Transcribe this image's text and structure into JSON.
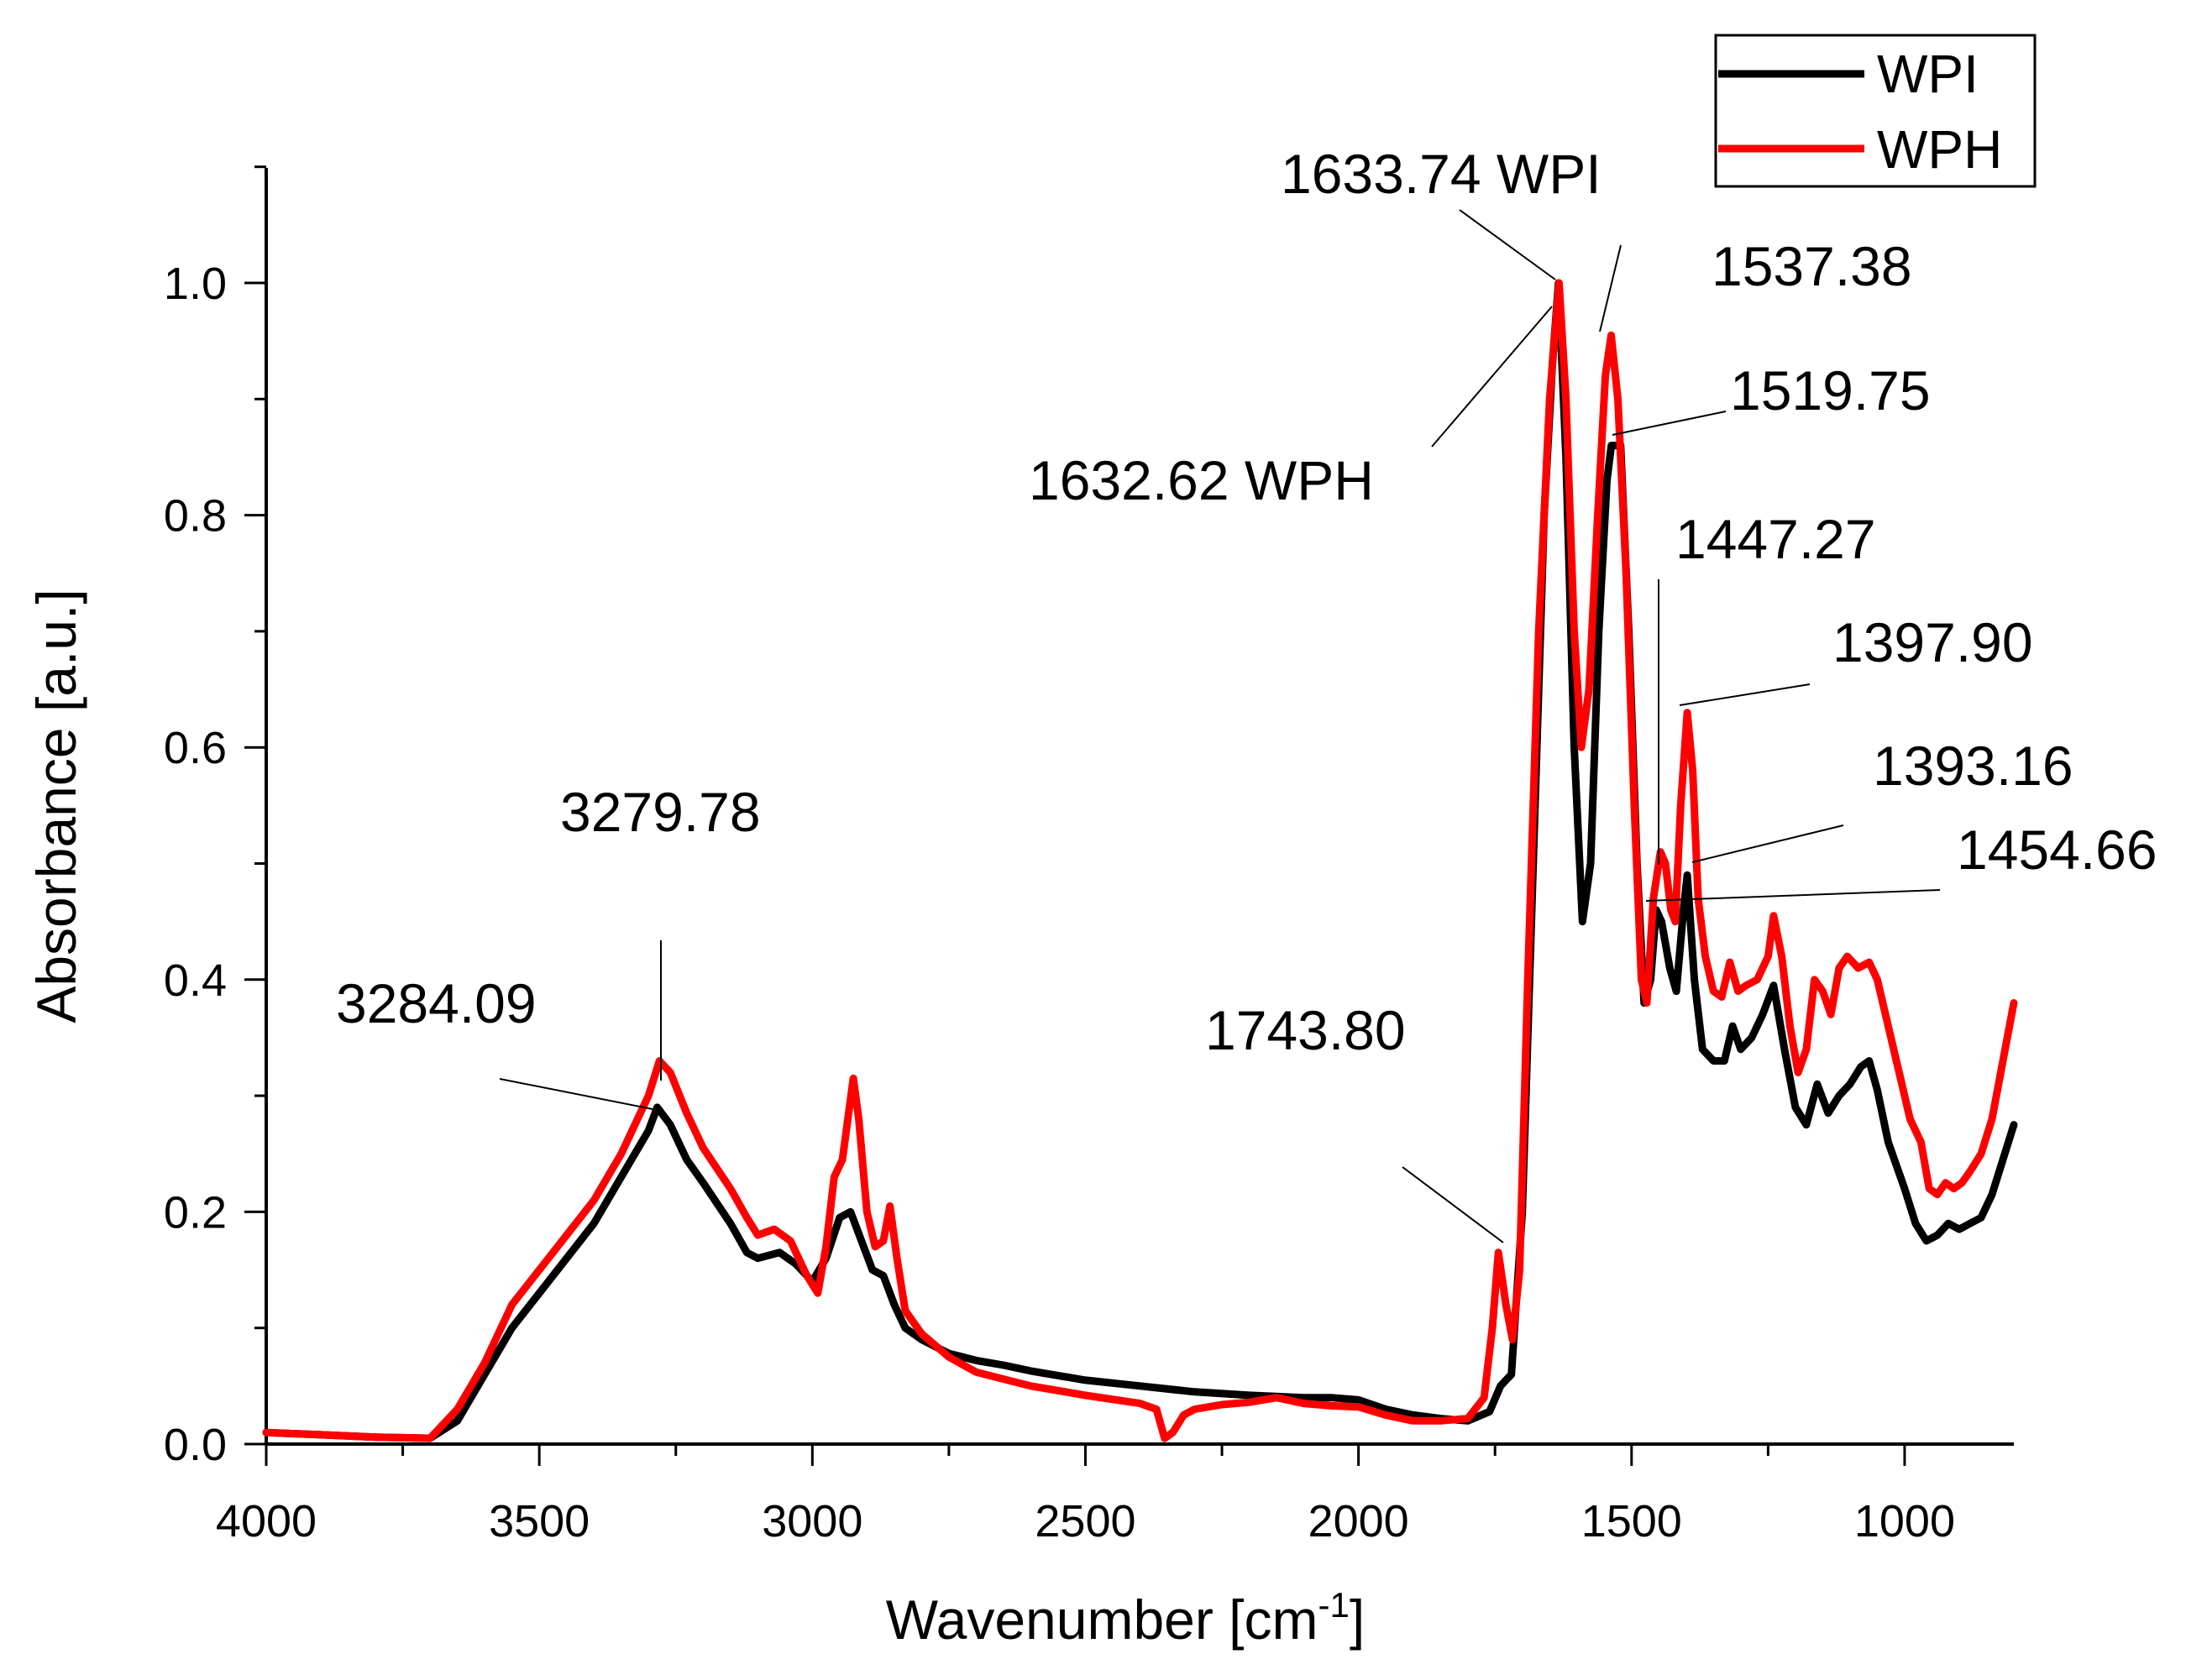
{
  "chart_data": {
    "type": "line",
    "title": "",
    "xlabel": "Wavenumber [cm",
    "xlabel_sup": "-1",
    "xlabel_end": "]",
    "ylabel": "Absorbance [a.u.]",
    "xlim": [
      4000,
      800
    ],
    "ylim": [
      0,
      1.1
    ],
    "x_ticks": [
      4000,
      3500,
      3000,
      2500,
      2000,
      1500,
      1000
    ],
    "x_tick_labels": [
      "4000",
      "3500",
      "3000",
      "2500",
      "2000",
      "1500",
      "1000"
    ],
    "y_ticks": [
      0,
      0.2,
      0.4,
      0.6,
      0.8,
      1.0
    ],
    "y_tick_labels": [
      "0.0",
      "0.2",
      "0.4",
      "0.6",
      "0.8",
      "1.0"
    ],
    "legend_position": "top-right",
    "series": [
      {
        "name": "WPI",
        "color": "#000000",
        "points": [
          [
            4000,
            0.01
          ],
          [
            3900,
            0.008
          ],
          [
            3800,
            0.006
          ],
          [
            3700,
            0.005
          ],
          [
            3650,
            0.02
          ],
          [
            3600,
            0.06
          ],
          [
            3550,
            0.1
          ],
          [
            3500,
            0.13
          ],
          [
            3450,
            0.16
          ],
          [
            3400,
            0.19
          ],
          [
            3350,
            0.23
          ],
          [
            3300,
            0.27
          ],
          [
            3284,
            0.29
          ],
          [
            3260,
            0.275
          ],
          [
            3230,
            0.245
          ],
          [
            3200,
            0.225
          ],
          [
            3150,
            0.19
          ],
          [
            3120,
            0.165
          ],
          [
            3100,
            0.16
          ],
          [
            3060,
            0.165
          ],
          [
            3030,
            0.155
          ],
          [
            3000,
            0.14
          ],
          [
            2975,
            0.16
          ],
          [
            2950,
            0.195
          ],
          [
            2930,
            0.2
          ],
          [
            2910,
            0.175
          ],
          [
            2890,
            0.15
          ],
          [
            2870,
            0.145
          ],
          [
            2850,
            0.12
          ],
          [
            2830,
            0.1
          ],
          [
            2800,
            0.09
          ],
          [
            2750,
            0.078
          ],
          [
            2700,
            0.072
          ],
          [
            2650,
            0.068
          ],
          [
            2600,
            0.063
          ],
          [
            2500,
            0.055
          ],
          [
            2400,
            0.05
          ],
          [
            2300,
            0.045
          ],
          [
            2200,
            0.042
          ],
          [
            2100,
            0.04
          ],
          [
            2050,
            0.04
          ],
          [
            2000,
            0.038
          ],
          [
            1950,
            0.03
          ],
          [
            1900,
            0.025
          ],
          [
            1850,
            0.022
          ],
          [
            1800,
            0.02
          ],
          [
            1760,
            0.028
          ],
          [
            1740,
            0.05
          ],
          [
            1720,
            0.06
          ],
          [
            1700,
            0.2
          ],
          [
            1680,
            0.5
          ],
          [
            1660,
            0.8
          ],
          [
            1645,
            0.93
          ],
          [
            1633.74,
            1.0
          ],
          [
            1620,
            0.85
          ],
          [
            1605,
            0.6
          ],
          [
            1590,
            0.45
          ],
          [
            1575,
            0.5
          ],
          [
            1560,
            0.7
          ],
          [
            1545,
            0.83
          ],
          [
            1537,
            0.86
          ],
          [
            1520,
            0.86
          ],
          [
            1505,
            0.7
          ],
          [
            1490,
            0.5
          ],
          [
            1477,
            0.38
          ],
          [
            1465,
            0.4
          ],
          [
            1455,
            0.46
          ],
          [
            1445,
            0.45
          ],
          [
            1430,
            0.41
          ],
          [
            1418,
            0.39
          ],
          [
            1405,
            0.46
          ],
          [
            1398,
            0.49
          ],
          [
            1385,
            0.4
          ],
          [
            1370,
            0.34
          ],
          [
            1350,
            0.33
          ],
          [
            1330,
            0.33
          ],
          [
            1315,
            0.36
          ],
          [
            1300,
            0.34
          ],
          [
            1280,
            0.35
          ],
          [
            1260,
            0.37
          ],
          [
            1240,
            0.395
          ],
          [
            1220,
            0.34
          ],
          [
            1200,
            0.29
          ],
          [
            1180,
            0.275
          ],
          [
            1160,
            0.31
          ],
          [
            1140,
            0.285
          ],
          [
            1120,
            0.3
          ],
          [
            1100,
            0.31
          ],
          [
            1080,
            0.325
          ],
          [
            1065,
            0.33
          ],
          [
            1050,
            0.305
          ],
          [
            1030,
            0.26
          ],
          [
            1000,
            0.22
          ],
          [
            980,
            0.19
          ],
          [
            960,
            0.175
          ],
          [
            940,
            0.18
          ],
          [
            920,
            0.19
          ],
          [
            900,
            0.185
          ],
          [
            880,
            0.19
          ],
          [
            860,
            0.195
          ],
          [
            840,
            0.215
          ],
          [
            820,
            0.245
          ],
          [
            800,
            0.275
          ]
        ]
      },
      {
        "name": "WPH",
        "color": "#ff0000",
        "points": [
          [
            4000,
            0.01
          ],
          [
            3900,
            0.008
          ],
          [
            3800,
            0.006
          ],
          [
            3700,
            0.005
          ],
          [
            3650,
            0.03
          ],
          [
            3600,
            0.07
          ],
          [
            3550,
            0.12
          ],
          [
            3500,
            0.15
          ],
          [
            3450,
            0.18
          ],
          [
            3400,
            0.21
          ],
          [
            3350,
            0.25
          ],
          [
            3300,
            0.3
          ],
          [
            3280,
            0.33
          ],
          [
            3260,
            0.32
          ],
          [
            3230,
            0.285
          ],
          [
            3200,
            0.255
          ],
          [
            3150,
            0.22
          ],
          [
            3120,
            0.195
          ],
          [
            3100,
            0.18
          ],
          [
            3070,
            0.185
          ],
          [
            3040,
            0.175
          ],
          [
            3010,
            0.145
          ],
          [
            2990,
            0.13
          ],
          [
            2975,
            0.17
          ],
          [
            2960,
            0.23
          ],
          [
            2945,
            0.245
          ],
          [
            2935,
            0.28
          ],
          [
            2925,
            0.315
          ],
          [
            2915,
            0.28
          ],
          [
            2900,
            0.2
          ],
          [
            2885,
            0.17
          ],
          [
            2870,
            0.175
          ],
          [
            2858,
            0.205
          ],
          [
            2845,
            0.16
          ],
          [
            2830,
            0.115
          ],
          [
            2800,
            0.095
          ],
          [
            2750,
            0.075
          ],
          [
            2700,
            0.062
          ],
          [
            2600,
            0.05
          ],
          [
            2500,
            0.042
          ],
          [
            2400,
            0.035
          ],
          [
            2370,
            0.03
          ],
          [
            2355,
            0.005
          ],
          [
            2340,
            0.01
          ],
          [
            2320,
            0.025
          ],
          [
            2300,
            0.03
          ],
          [
            2250,
            0.034
          ],
          [
            2200,
            0.036
          ],
          [
            2150,
            0.04
          ],
          [
            2100,
            0.035
          ],
          [
            2050,
            0.033
          ],
          [
            2000,
            0.032
          ],
          [
            1950,
            0.025
          ],
          [
            1900,
            0.02
          ],
          [
            1850,
            0.02
          ],
          [
            1800,
            0.022
          ],
          [
            1770,
            0.04
          ],
          [
            1755,
            0.1
          ],
          [
            1743.8,
            0.165
          ],
          [
            1730,
            0.12
          ],
          [
            1718,
            0.09
          ],
          [
            1705,
            0.15
          ],
          [
            1690,
            0.4
          ],
          [
            1670,
            0.7
          ],
          [
            1650,
            0.9
          ],
          [
            1632.62,
            1.0
          ],
          [
            1620,
            0.9
          ],
          [
            1605,
            0.7
          ],
          [
            1592,
            0.6
          ],
          [
            1578,
            0.65
          ],
          [
            1562,
            0.8
          ],
          [
            1548,
            0.92
          ],
          [
            1537.38,
            0.955
          ],
          [
            1525,
            0.9
          ],
          [
            1510,
            0.75
          ],
          [
            1495,
            0.55
          ],
          [
            1482,
            0.4
          ],
          [
            1472,
            0.38
          ],
          [
            1460,
            0.47
          ],
          [
            1447,
            0.51
          ],
          [
            1438,
            0.5
          ],
          [
            1428,
            0.46
          ],
          [
            1420,
            0.45
          ],
          [
            1410,
            0.55
          ],
          [
            1398,
            0.63
          ],
          [
            1388,
            0.58
          ],
          [
            1378,
            0.47
          ],
          [
            1365,
            0.42
          ],
          [
            1350,
            0.39
          ],
          [
            1335,
            0.385
          ],
          [
            1320,
            0.415
          ],
          [
            1305,
            0.39
          ],
          [
            1290,
            0.395
          ],
          [
            1270,
            0.4
          ],
          [
            1250,
            0.42
          ],
          [
            1240,
            0.455
          ],
          [
            1225,
            0.42
          ],
          [
            1210,
            0.36
          ],
          [
            1195,
            0.32
          ],
          [
            1180,
            0.34
          ],
          [
            1165,
            0.4
          ],
          [
            1150,
            0.39
          ],
          [
            1135,
            0.37
          ],
          [
            1120,
            0.41
          ],
          [
            1105,
            0.42
          ],
          [
            1085,
            0.41
          ],
          [
            1065,
            0.415
          ],
          [
            1050,
            0.4
          ],
          [
            1030,
            0.36
          ],
          [
            1010,
            0.32
          ],
          [
            990,
            0.28
          ],
          [
            970,
            0.26
          ],
          [
            955,
            0.22
          ],
          [
            940,
            0.215
          ],
          [
            925,
            0.225
          ],
          [
            910,
            0.22
          ],
          [
            895,
            0.225
          ],
          [
            880,
            0.235
          ],
          [
            860,
            0.25
          ],
          [
            840,
            0.28
          ],
          [
            820,
            0.33
          ],
          [
            800,
            0.38
          ]
        ]
      }
    ],
    "annotations": [
      {
        "text": "1633.74 WPI"
      },
      {
        "text": "1537.38"
      },
      {
        "text": "1632.62 WPH"
      },
      {
        "text": "1519.75"
      },
      {
        "text": "1447.27"
      },
      {
        "text": "1397.90"
      },
      {
        "text": "1393.16"
      },
      {
        "text": "1454.66"
      },
      {
        "text": "3279.78"
      },
      {
        "text": "3284.09"
      },
      {
        "text": "1743.80"
      }
    ]
  }
}
